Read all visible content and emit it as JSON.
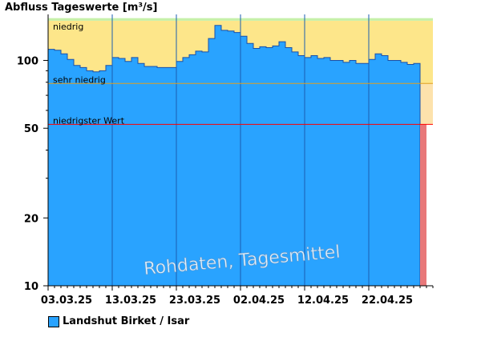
{
  "chart_data": {
    "type": "area",
    "title": "Abfluss Tageswerte [m³/s]",
    "yscale": "log",
    "ylim": [
      10,
      160
    ],
    "yticks": [
      {
        "value": 10,
        "label": "10"
      },
      {
        "value": 20,
        "label": "20"
      },
      {
        "value": 50,
        "label": "50"
      },
      {
        "value": 100,
        "label": "100"
      }
    ],
    "xlim": [
      "2025-03-03",
      "2025-05-02"
    ],
    "xticks": [
      {
        "date": "2025-03-03",
        "label": "03.03.25"
      },
      {
        "date": "2025-03-13",
        "label": "13.03.25"
      },
      {
        "date": "2025-03-23",
        "label": "23.03.25"
      },
      {
        "date": "2025-04-02",
        "label": "02.04.25"
      },
      {
        "date": "2025-04-12",
        "label": "12.04.25"
      },
      {
        "date": "2025-04-22",
        "label": "22.04.25"
      }
    ],
    "bands": [
      {
        "label": "niedrig",
        "from": 79,
        "to": 150,
        "color": "#fde68a"
      },
      {
        "label": "",
        "from": 150,
        "to": 154,
        "color": "#c6f0a8"
      },
      {
        "label": "sehr niedrig",
        "from": 52,
        "to": 79,
        "color": "#fde2ac"
      }
    ],
    "thresholds": [
      {
        "label": "niedrigster Wert",
        "value": 52,
        "color": "#ff0000"
      },
      {
        "label": "",
        "value": 79,
        "color": "#e0a020"
      }
    ],
    "watermark": "Rohdaten, Tagesmittel",
    "series": [
      {
        "name": "Landshut Birket / Isar",
        "color": "#29a3ff",
        "x": [
          "2025-03-03",
          "2025-03-04",
          "2025-03-05",
          "2025-03-06",
          "2025-03-07",
          "2025-03-08",
          "2025-03-09",
          "2025-03-10",
          "2025-03-11",
          "2025-03-12",
          "2025-03-13",
          "2025-03-14",
          "2025-03-15",
          "2025-03-16",
          "2025-03-17",
          "2025-03-18",
          "2025-03-19",
          "2025-03-20",
          "2025-03-21",
          "2025-03-22",
          "2025-03-23",
          "2025-03-24",
          "2025-03-25",
          "2025-03-26",
          "2025-03-27",
          "2025-03-28",
          "2025-03-29",
          "2025-03-30",
          "2025-03-31",
          "2025-04-01",
          "2025-04-02",
          "2025-04-03",
          "2025-04-04",
          "2025-04-05",
          "2025-04-06",
          "2025-04-07",
          "2025-04-08",
          "2025-04-09",
          "2025-04-10",
          "2025-04-11",
          "2025-04-12",
          "2025-04-13",
          "2025-04-14",
          "2025-04-15",
          "2025-04-16",
          "2025-04-17",
          "2025-04-18",
          "2025-04-19",
          "2025-04-20",
          "2025-04-21",
          "2025-04-22",
          "2025-04-23",
          "2025-04-24",
          "2025-04-25",
          "2025-04-26",
          "2025-04-27",
          "2025-04-28",
          "2025-04-29"
        ],
        "values": [
          112,
          111,
          107,
          101,
          95,
          93,
          90,
          89,
          90,
          95,
          103,
          102,
          99,
          103,
          97,
          94,
          94,
          93,
          93,
          93,
          99,
          103,
          106,
          110,
          109,
          125,
          143,
          136,
          135,
          133,
          128,
          119,
          113,
          115,
          114,
          116,
          121,
          114,
          109,
          105,
          103,
          105,
          102,
          103,
          100,
          100,
          98,
          100,
          97,
          97,
          101,
          107,
          105,
          100,
          100,
          98,
          96,
          97
        ]
      },
      {
        "name": "",
        "color": "#e8787a",
        "x": [
          "2025-04-30"
        ],
        "values": [
          52
        ]
      }
    ]
  }
}
